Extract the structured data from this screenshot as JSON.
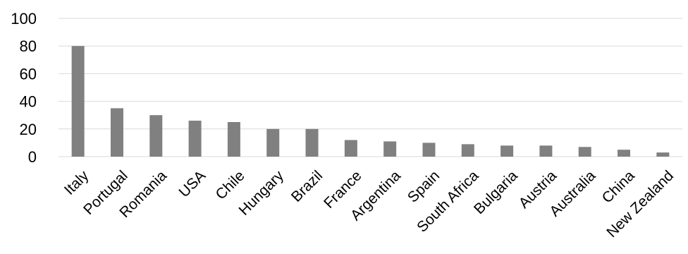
{
  "chart_data": {
    "type": "bar",
    "title": "",
    "xlabel": "",
    "ylabel": "",
    "categories": [
      "Italy",
      "Portugal",
      "Romania",
      "USA",
      "Chile",
      "Hungary",
      "Brazil",
      "France",
      "Argentina",
      "Spain",
      "South Africa",
      "Bulgaria",
      "Austria",
      "Australia",
      "China",
      "New Zealand"
    ],
    "values": [
      80,
      35,
      30,
      26,
      25,
      20,
      20,
      12,
      11,
      10,
      9,
      8,
      8,
      7,
      5,
      3
    ],
    "ylim": [
      0,
      100
    ],
    "yticks": [
      "0",
      "20",
      "40",
      "60",
      "80",
      "100"
    ],
    "grid": true,
    "legend": "none",
    "bar_color": "#808080",
    "grid_color": "#d9d9d9"
  }
}
